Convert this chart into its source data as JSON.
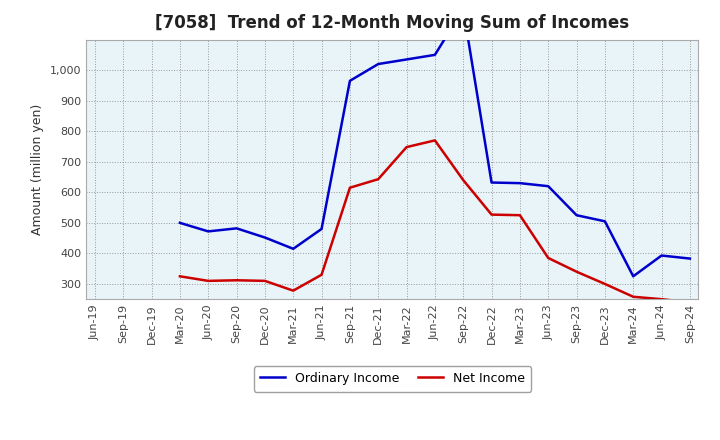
{
  "title": "[7058]  Trend of 12-Month Moving Sum of Incomes",
  "ylabel": "Amount (million yen)",
  "background_color": "#ffffff",
  "plot_bg_color": "#e8f4f8",
  "grid_color": "#999999",
  "x_labels": [
    "Jun-19",
    "Sep-19",
    "Dec-19",
    "Mar-20",
    "Jun-20",
    "Sep-20",
    "Dec-20",
    "Mar-21",
    "Jun-21",
    "Sep-21",
    "Dec-21",
    "Mar-22",
    "Jun-22",
    "Sep-22",
    "Dec-22",
    "Mar-23",
    "Jun-23",
    "Sep-23",
    "Dec-23",
    "Mar-24",
    "Jun-24",
    "Sep-24"
  ],
  "ordinary_income": [
    null,
    null,
    null,
    500,
    472,
    482,
    452,
    415,
    480,
    965,
    1020,
    1035,
    1050,
    1200,
    632,
    630,
    620,
    525,
    505,
    325,
    393,
    383
  ],
  "net_income": [
    null,
    null,
    null,
    325,
    310,
    312,
    310,
    278,
    330,
    615,
    643,
    748,
    770,
    640,
    527,
    525,
    385,
    340,
    300,
    258,
    250,
    240
  ],
  "ordinary_income_color": "#0000cc",
  "net_income_color": "#cc0000",
  "ylim_min": 250,
  "ylim_max": 1100,
  "yticks": [
    300,
    400,
    500,
    600,
    700,
    800,
    900,
    1000
  ],
  "legend_labels": [
    "Ordinary Income",
    "Net Income"
  ]
}
